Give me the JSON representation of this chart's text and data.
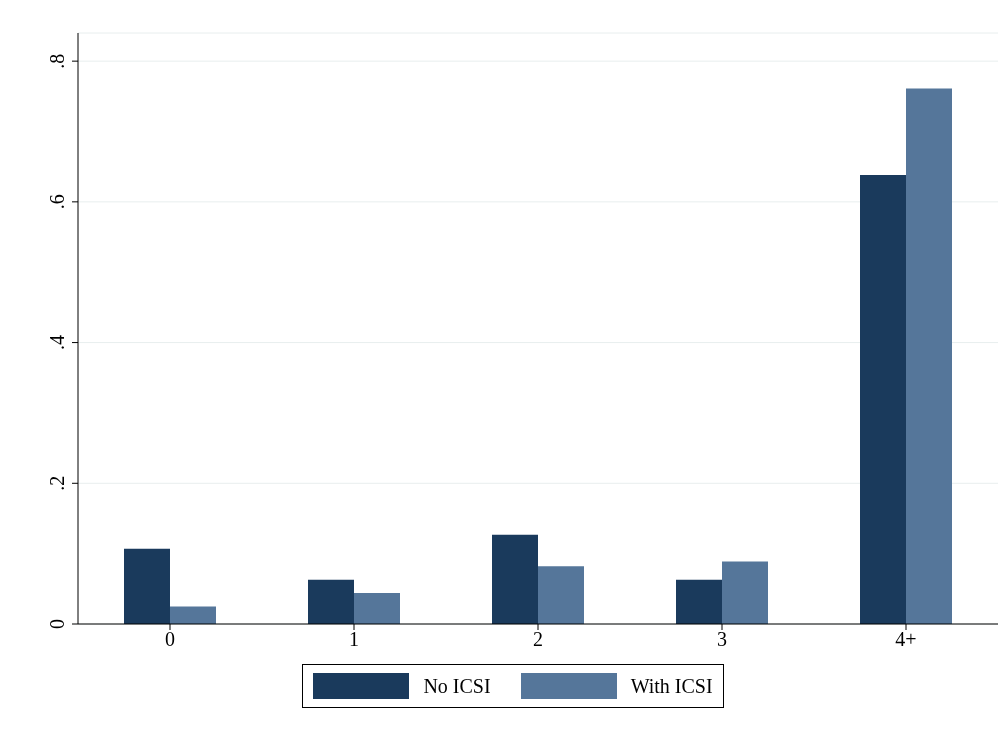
{
  "chart_data": {
    "type": "bar",
    "categories": [
      "0",
      "1",
      "2",
      "3",
      "4+"
    ],
    "series": [
      {
        "name": "No ICSI",
        "color": "#1a3a5c",
        "values": [
          0.107,
          0.063,
          0.127,
          0.063,
          0.638
        ]
      },
      {
        "name": "With ICSI",
        "color": "#55769a",
        "values": [
          0.025,
          0.044,
          0.082,
          0.089,
          0.761
        ]
      }
    ],
    "ylim": [
      0,
      0.84
    ],
    "yticks": [
      {
        "value": 0,
        "label": "0"
      },
      {
        "value": 0.2,
        "label": ".2"
      },
      {
        "value": 0.4,
        "label": ".4"
      },
      {
        "value": 0.6,
        "label": ".6"
      },
      {
        "value": 0.8,
        "label": ".8"
      }
    ],
    "grid": "y",
    "legend": "bottom"
  }
}
